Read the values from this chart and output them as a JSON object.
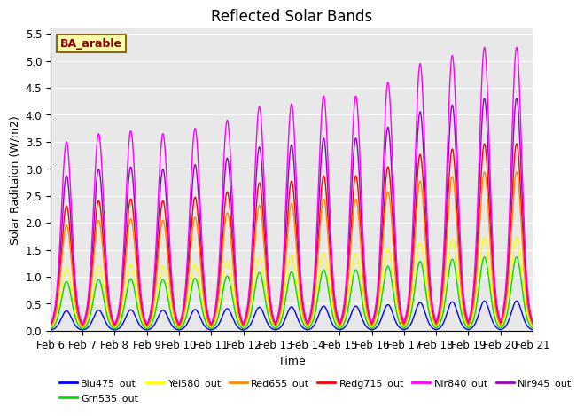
{
  "title": "Reflected Solar Bands",
  "xlabel": "Time",
  "ylabel": "Solar Raditaion (W/m2)",
  "ylim": [
    0,
    5.6
  ],
  "annotation": "BA_arable",
  "series_order_plot": [
    "Nir945_out",
    "Nir840_out",
    "Redg715_out",
    "Red655_out",
    "Yel580_out",
    "Grn535_out",
    "Blu475_out"
  ],
  "series_order_legend": [
    "Blu475_out",
    "Grn535_out",
    "Yel580_out",
    "Red655_out",
    "Redg715_out",
    "Nir840_out",
    "Nir945_out"
  ],
  "series": {
    "Blu475_out": {
      "color": "#0000ff",
      "lw": 1.0,
      "scale": 0.105
    },
    "Grn535_out": {
      "color": "#00dd00",
      "lw": 1.0,
      "scale": 0.26
    },
    "Yel580_out": {
      "color": "#ffff00",
      "lw": 1.0,
      "scale": 0.33
    },
    "Red655_out": {
      "color": "#ff8800",
      "lw": 1.0,
      "scale": 0.56
    },
    "Redg715_out": {
      "color": "#ff0000",
      "lw": 1.0,
      "scale": 0.66
    },
    "Nir840_out": {
      "color": "#ff00ff",
      "lw": 1.0,
      "scale": 1.0
    },
    "Nir945_out": {
      "color": "#9900cc",
      "lw": 1.0,
      "scale": 0.82
    }
  },
  "nir840_peaks": [
    3.5,
    3.65,
    3.7,
    3.65,
    3.75,
    3.9,
    4.15,
    4.2,
    4.35,
    4.35,
    4.6,
    4.95,
    5.1,
    5.25,
    5.25
  ],
  "day_labels": [
    "Feb 6",
    "Feb 7",
    "Feb 8",
    "Feb 9",
    "Feb 10",
    "Feb 11",
    "Feb 12",
    "Feb 13",
    "Feb 14",
    "Feb 15",
    "Feb 16",
    "Feb 17",
    "Feb 18",
    "Feb 19",
    "Feb 20",
    "Feb 21"
  ],
  "n_days": 15,
  "background_color": "#e8e8e8",
  "grid_color": "#ffffff",
  "title_fontsize": 12,
  "label_fontsize": 9,
  "tick_fontsize": 8.5
}
